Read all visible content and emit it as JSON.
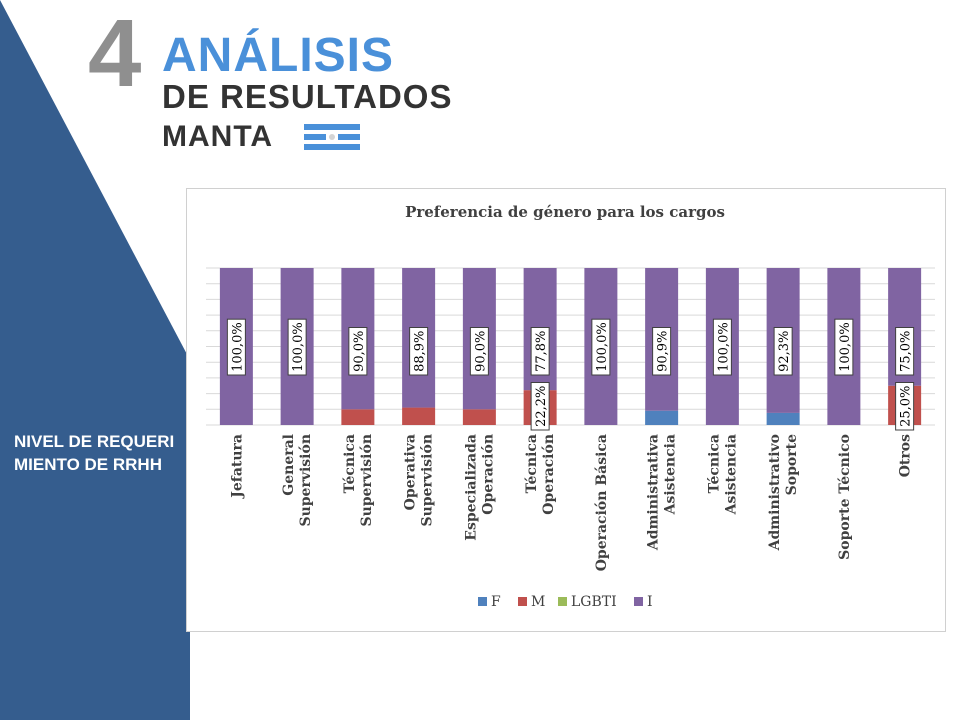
{
  "header": {
    "number": "4",
    "title": "ANÁLISIS",
    "subtitle": "DE RESULTADOS",
    "city": "MANTA"
  },
  "side_panel": {
    "label": "NIVEL DE REQUERIMIENTO DE RRHH",
    "color": "#355d8e"
  },
  "flag": {
    "icon": "manta-flag-icon",
    "colors": [
      "#4a90d9",
      "#ffffff"
    ]
  },
  "chart_data": {
    "type": "bar",
    "stacked": true,
    "percent": true,
    "title": "Preferencia de género para los cargos",
    "categories": [
      [
        "Jefatura"
      ],
      [
        "Supervisión",
        "General"
      ],
      [
        "Supervisión",
        "Técnica"
      ],
      [
        "Supervisión",
        "Operativa"
      ],
      [
        "Operación",
        "Especializada"
      ],
      [
        "Operación",
        "Técnica"
      ],
      [
        "Operación Básica"
      ],
      [
        "Asistencia",
        "Administrativa"
      ],
      [
        "Asistencia",
        "Técnica"
      ],
      [
        "Soporte",
        "Administrativo"
      ],
      [
        "Soporte Técnico"
      ],
      [
        "Otros"
      ]
    ],
    "series": [
      {
        "name": "F",
        "color": "#4f81bd",
        "values": [
          0,
          0,
          0,
          0,
          0,
          0,
          0,
          9.1,
          0,
          7.7,
          0,
          0
        ],
        "labels": [
          "",
          "",
          "",
          "",
          "",
          "",
          "",
          "",
          "",
          "",
          "",
          ""
        ]
      },
      {
        "name": "M",
        "color": "#c0504d",
        "values": [
          0,
          0,
          10.0,
          11.1,
          10.0,
          22.2,
          0,
          0,
          0,
          0,
          0,
          25.0
        ],
        "labels": [
          "",
          "",
          "",
          "",
          "",
          "22,2%",
          "",
          "",
          "",
          "",
          "",
          "25,0%"
        ]
      },
      {
        "name": "LGBTI",
        "color": "#9bbb59",
        "values": [
          0,
          0,
          0,
          0,
          0,
          0,
          0,
          0,
          0,
          0,
          0,
          0
        ],
        "labels": [
          "",
          "",
          "",
          "",
          "",
          "",
          "",
          "",
          "",
          "",
          "",
          ""
        ]
      },
      {
        "name": "I",
        "color": "#8064a2",
        "values": [
          100,
          100,
          90.0,
          88.9,
          90.0,
          77.8,
          100,
          90.9,
          100,
          92.3,
          100,
          75.0
        ],
        "labels": [
          "100,0%",
          "100,0%",
          "90,0%",
          "88,9%",
          "90,0%",
          "77,8%",
          "100,0%",
          "90,9%",
          "100,0%",
          "92,3%",
          "100,0%",
          "75,0%"
        ]
      }
    ],
    "ylim": [
      0,
      100
    ],
    "grid": true,
    "legend": "bottom"
  }
}
